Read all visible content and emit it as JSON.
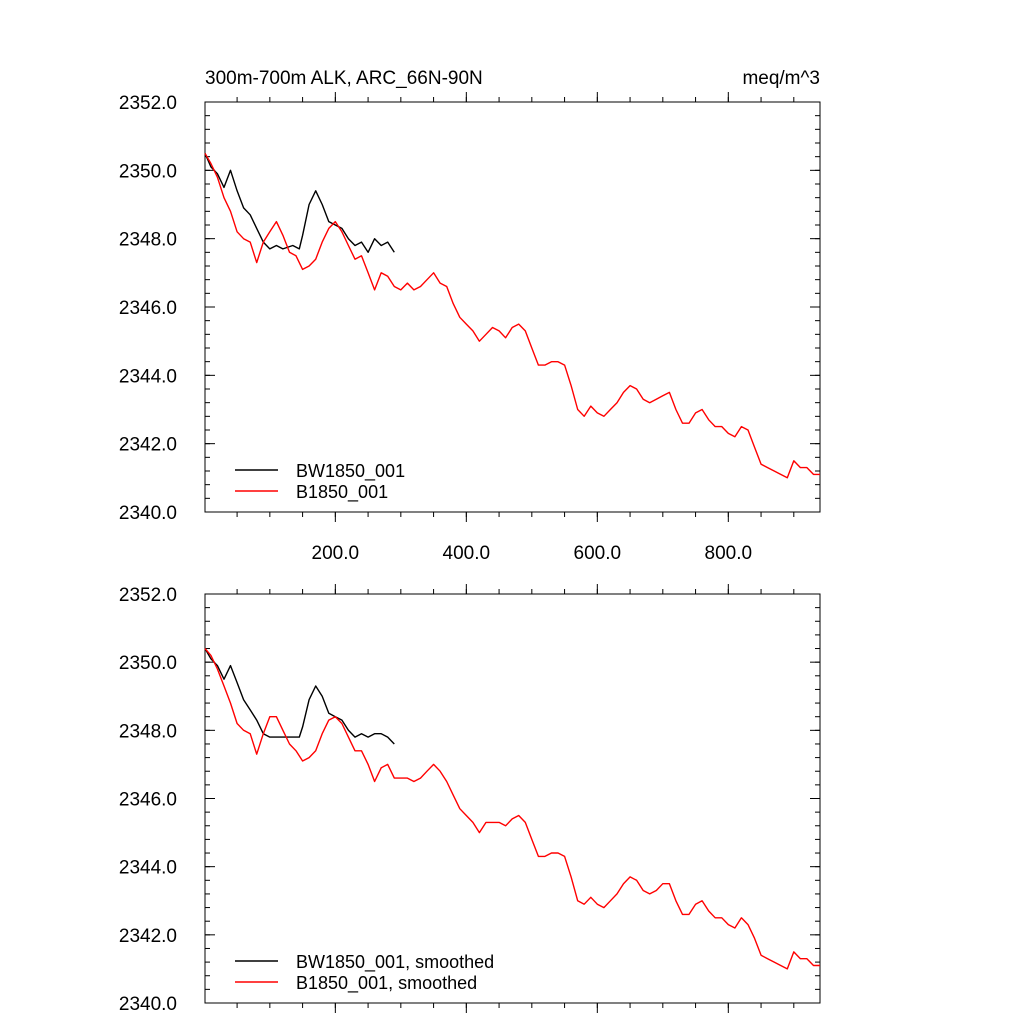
{
  "colors": {
    "black": "#000000",
    "red": "#ff0000"
  },
  "chart_data": [
    {
      "type": "line",
      "title_left": "300m-700m ALK, ARC_66N-90N",
      "title_right": "meq/m^3",
      "xlim": [
        1,
        940
      ],
      "ylim": [
        2340.0,
        2352.0
      ],
      "x_major_ticks": [
        200,
        400,
        600,
        800
      ],
      "x_tick_labels": [
        "200.0",
        "400.0",
        "600.0",
        "800.0"
      ],
      "x_minor_step": 50,
      "y_major_ticks": [
        2340,
        2342,
        2344,
        2346,
        2348,
        2350,
        2352
      ],
      "y_tick_labels": [
        "2340.0",
        "2342.0",
        "2344.0",
        "2346.0",
        "2348.0",
        "2350.0",
        "2352.0"
      ],
      "y_minor_step": 0.4,
      "legend_position": "bottom-left",
      "series": [
        {
          "name": "BW1850_001",
          "color": "#000000",
          "x": [
            1,
            10,
            20,
            30,
            40,
            50,
            60,
            70,
            80,
            90,
            100,
            110,
            120,
            135,
            145,
            150,
            160,
            170,
            180,
            190,
            200,
            210,
            220,
            230,
            240,
            250,
            260,
            270,
            280,
            290
          ],
          "y": [
            2350.5,
            2350.1,
            2349.9,
            2349.5,
            2350.0,
            2349.4,
            2348.9,
            2348.7,
            2348.3,
            2347.9,
            2347.7,
            2347.8,
            2347.7,
            2347.8,
            2347.7,
            2348.1,
            2349.0,
            2349.4,
            2349.0,
            2348.5,
            2348.4,
            2348.3,
            2348.0,
            2347.8,
            2347.9,
            2347.6,
            2348.0,
            2347.8,
            2347.9,
            2347.6
          ]
        },
        {
          "name": "B1850_001",
          "color": "#ff0000",
          "x": [
            1,
            10,
            20,
            30,
            40,
            50,
            60,
            70,
            80,
            90,
            100,
            110,
            120,
            130,
            140,
            150,
            160,
            170,
            180,
            190,
            200,
            210,
            220,
            230,
            240,
            250,
            260,
            270,
            280,
            290,
            300,
            310,
            320,
            330,
            340,
            350,
            360,
            370,
            380,
            390,
            400,
            410,
            420,
            430,
            440,
            450,
            460,
            470,
            480,
            490,
            500,
            510,
            520,
            530,
            540,
            550,
            560,
            570,
            580,
            590,
            600,
            610,
            620,
            630,
            640,
            650,
            660,
            670,
            680,
            690,
            700,
            710,
            720,
            730,
            740,
            750,
            760,
            770,
            780,
            790,
            800,
            810,
            820,
            830,
            840,
            850,
            860,
            870,
            880,
            890,
            900,
            910,
            920,
            930,
            940
          ],
          "y": [
            2350.5,
            2350.2,
            2349.8,
            2349.2,
            2348.8,
            2348.2,
            2348.0,
            2347.9,
            2347.3,
            2347.9,
            2348.2,
            2348.5,
            2348.1,
            2347.6,
            2347.5,
            2347.1,
            2347.2,
            2347.4,
            2347.9,
            2348.3,
            2348.5,
            2348.2,
            2347.8,
            2347.4,
            2347.5,
            2347.0,
            2346.5,
            2347.0,
            2346.9,
            2346.6,
            2346.5,
            2346.7,
            2346.5,
            2346.6,
            2346.8,
            2347.0,
            2346.7,
            2346.6,
            2346.1,
            2345.7,
            2345.5,
            2345.3,
            2345.0,
            2345.2,
            2345.4,
            2345.3,
            2345.1,
            2345.4,
            2345.5,
            2345.3,
            2344.8,
            2344.3,
            2344.3,
            2344.4,
            2344.4,
            2344.3,
            2343.7,
            2343.0,
            2342.8,
            2343.1,
            2342.9,
            2342.8,
            2343.0,
            2343.2,
            2343.5,
            2343.7,
            2343.6,
            2343.3,
            2343.2,
            2343.3,
            2343.4,
            2343.5,
            2343.0,
            2342.6,
            2342.6,
            2342.9,
            2343.0,
            2342.7,
            2342.5,
            2342.5,
            2342.3,
            2342.2,
            2342.5,
            2342.4,
            2341.9,
            2341.4,
            2341.3,
            2341.2,
            2341.1,
            2341.0,
            2341.5,
            2341.3,
            2341.3,
            2341.1,
            2341.1
          ]
        }
      ]
    },
    {
      "type": "line",
      "xlim": [
        1,
        940
      ],
      "ylim": [
        2340.0,
        2352.0
      ],
      "x_major_ticks": [
        200,
        400,
        600,
        800
      ],
      "x_minor_step": 50,
      "y_major_ticks": [
        2340,
        2342,
        2344,
        2346,
        2348,
        2350,
        2352
      ],
      "y_tick_labels": [
        "2340.0",
        "2342.0",
        "2344.0",
        "2346.0",
        "2348.0",
        "2350.0",
        "2352.0"
      ],
      "y_minor_step": 0.4,
      "legend_position": "bottom-left",
      "series": [
        {
          "name": "BW1850_001, smoothed",
          "color": "#000000",
          "x": [
            1,
            10,
            20,
            30,
            40,
            50,
            60,
            70,
            80,
            90,
            100,
            110,
            120,
            135,
            145,
            150,
            160,
            170,
            180,
            190,
            200,
            210,
            220,
            230,
            240,
            250,
            260,
            270,
            280,
            290
          ],
          "y": [
            2350.4,
            2350.1,
            2349.9,
            2349.5,
            2349.9,
            2349.4,
            2348.9,
            2348.6,
            2348.3,
            2347.9,
            2347.8,
            2347.8,
            2347.8,
            2347.8,
            2347.8,
            2348.1,
            2348.9,
            2349.3,
            2349.0,
            2348.5,
            2348.4,
            2348.3,
            2348.0,
            2347.8,
            2347.9,
            2347.8,
            2347.9,
            2347.9,
            2347.8,
            2347.6
          ]
        },
        {
          "name": "B1850_001, smoothed",
          "color": "#ff0000",
          "x": [
            1,
            10,
            20,
            30,
            40,
            50,
            60,
            70,
            80,
            90,
            100,
            110,
            120,
            130,
            140,
            150,
            160,
            170,
            180,
            190,
            200,
            210,
            220,
            230,
            240,
            250,
            260,
            270,
            280,
            290,
            300,
            310,
            320,
            330,
            340,
            350,
            360,
            370,
            380,
            390,
            400,
            410,
            420,
            430,
            440,
            450,
            460,
            470,
            480,
            490,
            500,
            510,
            520,
            530,
            540,
            550,
            560,
            570,
            580,
            590,
            600,
            610,
            620,
            630,
            640,
            650,
            660,
            670,
            680,
            690,
            700,
            710,
            720,
            730,
            740,
            750,
            760,
            770,
            780,
            790,
            800,
            810,
            820,
            830,
            840,
            850,
            860,
            870,
            880,
            890,
            900,
            910,
            920,
            930,
            940
          ],
          "y": [
            2350.4,
            2350.2,
            2349.8,
            2349.3,
            2348.8,
            2348.2,
            2348.0,
            2347.9,
            2347.3,
            2347.9,
            2348.4,
            2348.4,
            2348.0,
            2347.6,
            2347.4,
            2347.1,
            2347.2,
            2347.4,
            2347.9,
            2348.3,
            2348.4,
            2348.2,
            2347.8,
            2347.4,
            2347.4,
            2347.0,
            2346.5,
            2346.9,
            2347.0,
            2346.6,
            2346.6,
            2346.6,
            2346.5,
            2346.6,
            2346.8,
            2347.0,
            2346.8,
            2346.5,
            2346.1,
            2345.7,
            2345.5,
            2345.3,
            2345.0,
            2345.3,
            2345.3,
            2345.3,
            2345.2,
            2345.4,
            2345.5,
            2345.3,
            2344.8,
            2344.3,
            2344.3,
            2344.4,
            2344.4,
            2344.3,
            2343.7,
            2343.0,
            2342.9,
            2343.1,
            2342.9,
            2342.8,
            2343.0,
            2343.2,
            2343.5,
            2343.7,
            2343.6,
            2343.3,
            2343.2,
            2343.3,
            2343.5,
            2343.5,
            2343.0,
            2342.6,
            2342.6,
            2342.9,
            2343.0,
            2342.7,
            2342.5,
            2342.5,
            2342.3,
            2342.2,
            2342.5,
            2342.3,
            2341.9,
            2341.4,
            2341.3,
            2341.2,
            2341.1,
            2341.0,
            2341.5,
            2341.3,
            2341.3,
            2341.1,
            2341.1
          ]
        }
      ]
    }
  ]
}
